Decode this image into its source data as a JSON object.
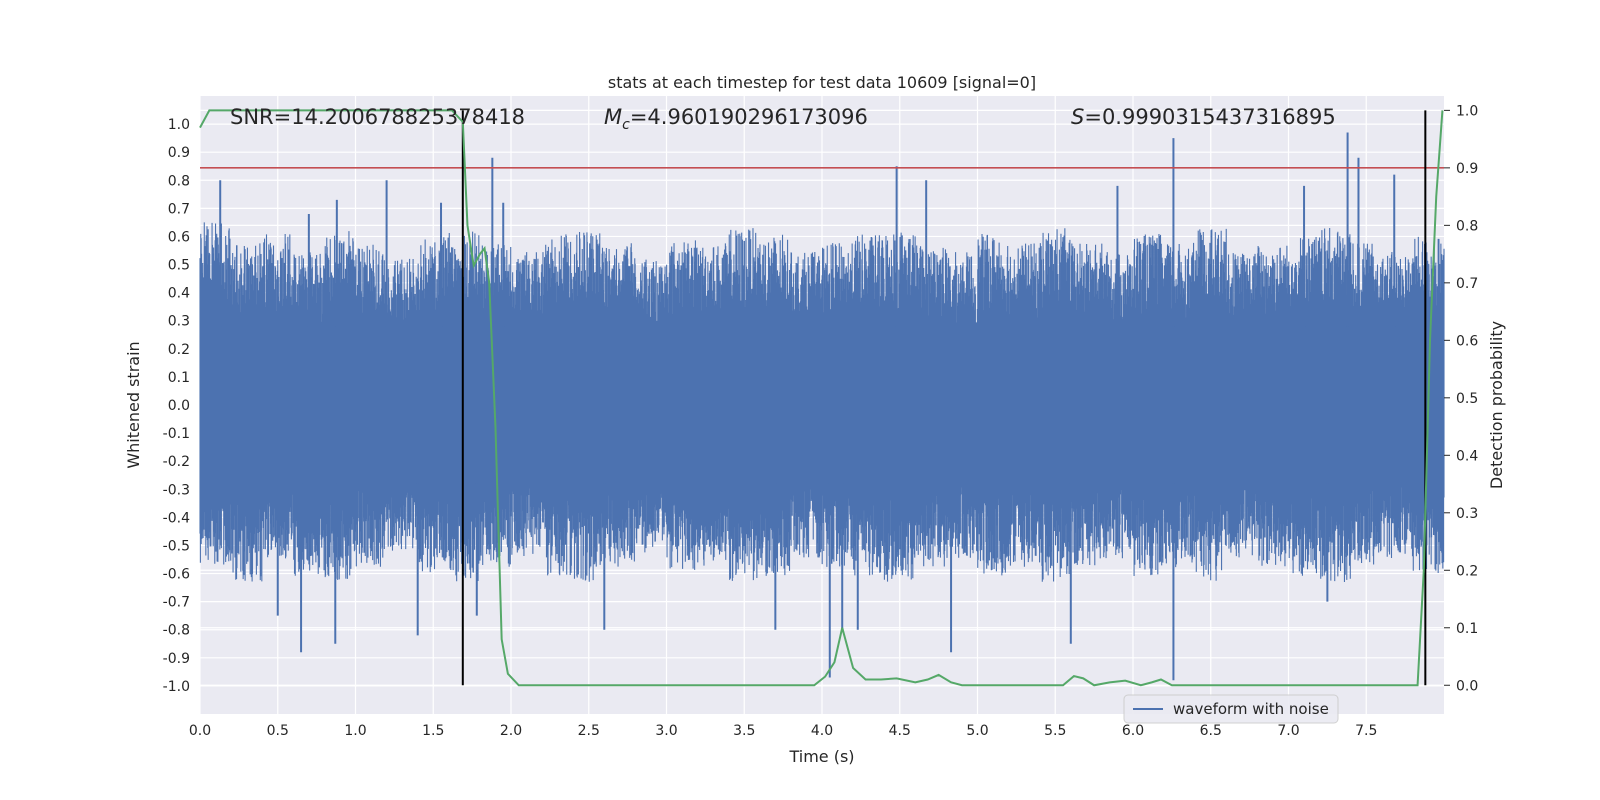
{
  "chart_data": {
    "type": "line",
    "title": "stats at each timestep for test data 10609 [signal=0]",
    "xlabel": "Time (s)",
    "ylabel": "Whitened strain",
    "y2label": "Detection probability",
    "xlim": [
      0,
      8.0
    ],
    "ylim": [
      -1.1,
      1.1
    ],
    "y2lim": [
      -0.05,
      1.025
    ],
    "xticks": [
      "0.0",
      "0.5",
      "1.0",
      "1.5",
      "2.0",
      "2.5",
      "3.0",
      "3.5",
      "4.0",
      "4.5",
      "5.0",
      "5.5",
      "6.0",
      "6.5",
      "7.0",
      "7.5"
    ],
    "yticks": [
      "1.0",
      "0.9",
      "0.8",
      "0.7",
      "0.6",
      "0.5",
      "0.4",
      "0.3",
      "0.2",
      "0.1",
      "0.0",
      "-0.1",
      "-0.2",
      "-0.3",
      "-0.4",
      "-0.5",
      "-0.6",
      "-0.7",
      "-0.8",
      "-0.9",
      "-1.0"
    ],
    "y2ticks": [
      "1.0",
      "0.9",
      "0.8",
      "0.7",
      "0.6",
      "0.5",
      "0.4",
      "0.3",
      "0.2",
      "0.1",
      "0.0"
    ],
    "grid": true,
    "legend": {
      "position": "lower-right",
      "entries": [
        "waveform with noise"
      ]
    },
    "annotations": {
      "snr": "SNR=14.200678825378418",
      "mc_sym": "M",
      "mc_sub": "c",
      "mc_value": "=4.960190296173096",
      "s_sym": "S",
      "s_value": "=0.9990315437316895"
    },
    "threshold": 0.9,
    "vlines": [
      1.69,
      7.88
    ],
    "series": [
      {
        "name": "waveform with noise",
        "axis": "left",
        "envelope_upper": [
          0.62,
          0.55,
          0.58,
          0.52,
          0.6,
          0.55,
          0.5,
          0.57,
          0.6,
          0.55,
          0.52,
          0.58,
          0.6,
          0.55,
          0.5,
          0.56,
          0.55,
          0.6,
          0.58,
          0.52,
          0.55,
          0.58,
          0.6,
          0.55,
          0.52,
          0.58,
          0.55,
          0.6,
          0.55,
          0.52,
          0.58,
          0.55,
          0.6,
          0.52,
          0.55,
          0.58,
          0.6,
          0.55,
          0.52,
          0.57
        ],
        "envelope_lower": [
          -0.55,
          -0.6,
          -0.52,
          -0.58,
          -0.6,
          -0.55,
          -0.5,
          -0.57,
          -0.6,
          -0.55,
          -0.52,
          -0.58,
          -0.6,
          -0.55,
          -0.5,
          -0.56,
          -0.55,
          -0.6,
          -0.58,
          -0.52,
          -0.55,
          -0.58,
          -0.6,
          -0.55,
          -0.52,
          -0.58,
          -0.55,
          -0.6,
          -0.55,
          -0.52,
          -0.58,
          -0.55,
          -0.6,
          -0.52,
          -0.55,
          -0.58,
          -0.6,
          -0.55,
          -0.52,
          -0.57
        ],
        "spikes": [
          [
            0.13,
            0.8
          ],
          [
            0.5,
            -0.75
          ],
          [
            0.65,
            -0.88
          ],
          [
            0.7,
            0.68
          ],
          [
            0.87,
            -0.85
          ],
          [
            0.88,
            0.73
          ],
          [
            1.2,
            0.8
          ],
          [
            1.4,
            -0.82
          ],
          [
            1.55,
            0.72
          ],
          [
            1.78,
            -0.75
          ],
          [
            1.88,
            0.88
          ],
          [
            1.95,
            0.72
          ],
          [
            2.6,
            -0.8
          ],
          [
            3.7,
            -0.8
          ],
          [
            4.05,
            -0.97
          ],
          [
            4.13,
            -0.8
          ],
          [
            4.23,
            -0.8
          ],
          [
            4.48,
            0.85
          ],
          [
            4.67,
            0.8
          ],
          [
            4.83,
            -0.88
          ],
          [
            5.6,
            -0.85
          ],
          [
            5.9,
            0.78
          ],
          [
            6.26,
            0.95
          ],
          [
            6.26,
            -0.98
          ],
          [
            7.1,
            0.78
          ],
          [
            7.25,
            -0.7
          ],
          [
            7.38,
            0.97
          ],
          [
            7.45,
            0.88
          ],
          [
            7.68,
            0.82
          ]
        ]
      },
      {
        "name": "",
        "axis": "right",
        "x": [
          0.0,
          0.06,
          0.15,
          0.25,
          0.4,
          0.6,
          0.8,
          1.0,
          1.2,
          1.4,
          1.55,
          1.62,
          1.69,
          1.72,
          1.76,
          1.8,
          1.83,
          1.86,
          1.9,
          1.94,
          1.98,
          2.05,
          2.2,
          2.4,
          2.6,
          2.8,
          3.0,
          3.2,
          3.4,
          3.6,
          3.8,
          3.95,
          4.02,
          4.08,
          4.13,
          4.2,
          4.28,
          4.38,
          4.48,
          4.6,
          4.68,
          4.75,
          4.83,
          4.9,
          5.0,
          5.1,
          5.2,
          5.3,
          5.4,
          5.55,
          5.62,
          5.68,
          5.75,
          5.85,
          5.95,
          6.05,
          6.12,
          6.18,
          6.25,
          6.35,
          6.5,
          6.7,
          6.9,
          7.1,
          7.3,
          7.5,
          7.7,
          7.83,
          7.87,
          7.91,
          7.95,
          7.99
        ],
        "values": [
          0.97,
          1.0,
          1.0,
          1.0,
          1.0,
          1.0,
          1.0,
          1.0,
          1.0,
          1.0,
          1.0,
          1.0,
          0.98,
          0.8,
          0.73,
          0.75,
          0.76,
          0.7,
          0.45,
          0.08,
          0.02,
          0.0,
          0.0,
          0.0,
          0.0,
          0.0,
          0.0,
          0.0,
          0.0,
          0.0,
          0.0,
          0.0,
          0.015,
          0.04,
          0.1,
          0.03,
          0.01,
          0.01,
          0.012,
          0.005,
          0.01,
          0.018,
          0.005,
          0.0,
          0.0,
          0.0,
          0.0,
          0.0,
          0.0,
          0.0,
          0.016,
          0.012,
          0.0,
          0.005,
          0.008,
          0.0,
          0.005,
          0.01,
          0.0,
          0.0,
          0.0,
          0.0,
          0.0,
          0.0,
          0.0,
          0.0,
          0.0,
          0.0,
          0.2,
          0.6,
          0.85,
          1.0
        ]
      }
    ]
  },
  "colors": {
    "axes_bg": "#eaeaf2",
    "grid": "#ffffff",
    "waveform": "#4c72b0",
    "probability": "#55a868",
    "threshold": "#c44e52",
    "vline": "#000000",
    "text": "#262626"
  }
}
